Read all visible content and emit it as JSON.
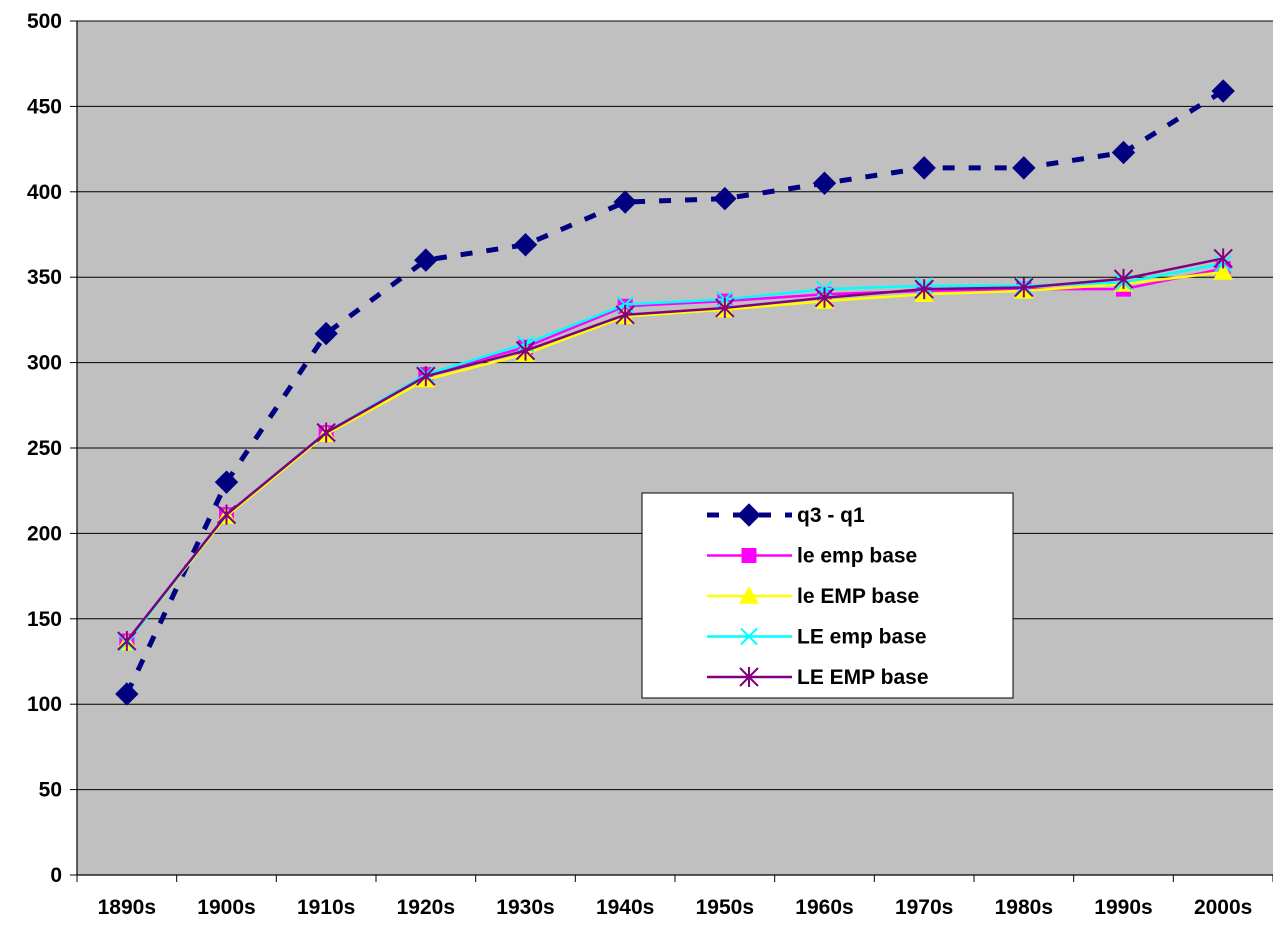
{
  "chart_data": {
    "type": "line",
    "title": "",
    "xlabel": "",
    "ylabel": "",
    "categories": [
      "1890s",
      "1900s",
      "1910s",
      "1920s",
      "1930s",
      "1940s",
      "1950s",
      "1960s",
      "1970s",
      "1980s",
      "1990s",
      "2000s"
    ],
    "ylim": [
      0,
      500
    ],
    "yticks": [
      0,
      50,
      100,
      150,
      200,
      250,
      300,
      350,
      400,
      450,
      500
    ],
    "grid": "horizontal",
    "legend_position": "center-right",
    "plot_background": "#c0c0c0",
    "series": [
      {
        "name": "q3 - q1",
        "color": "#000080",
        "marker": "diamond",
        "dashed": true,
        "values": [
          106,
          230,
          317,
          360,
          369,
          394,
          396,
          405,
          414,
          414,
          423,
          459
        ]
      },
      {
        "name": "le emp base",
        "color": "#ff00ff",
        "marker": "square",
        "dashed": false,
        "values": [
          137,
          211,
          259,
          293,
          309,
          333,
          336,
          340,
          342,
          343,
          343,
          355
        ]
      },
      {
        "name": "le EMP base",
        "color": "#ffff00",
        "marker": "triangle",
        "dashed": false,
        "values": [
          136,
          210,
          258,
          290,
          305,
          327,
          331,
          336,
          340,
          342,
          346,
          353
        ]
      },
      {
        "name": "LE emp base",
        "color": "#00ffff",
        "marker": "x",
        "dashed": false,
        "values": [
          136,
          211,
          259,
          293,
          311,
          334,
          337,
          343,
          345,
          345,
          347,
          358
        ]
      },
      {
        "name": "LE EMP base",
        "color": "#800080",
        "marker": "star",
        "dashed": false,
        "values": [
          137,
          211,
          259,
          292,
          307,
          328,
          332,
          338,
          343,
          344,
          349,
          361
        ]
      }
    ]
  }
}
